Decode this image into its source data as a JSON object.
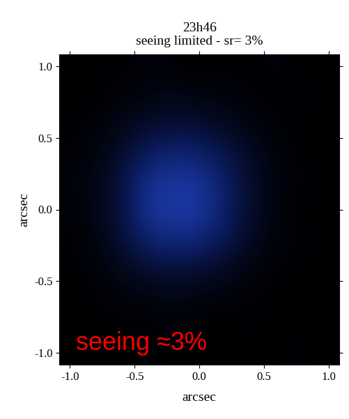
{
  "chart_data": {
    "type": "heatmap",
    "title": "23h46\nseeing limited - sr= 3%",
    "x_label": "arcsec",
    "y_label": "arcsec",
    "xlim": [
      -1.08,
      1.08
    ],
    "ylim": [
      -1.08,
      1.08
    ],
    "xticks": [
      {
        "value": -1.0,
        "label": "-1.0"
      },
      {
        "value": -0.5,
        "label": "-0.5"
      },
      {
        "value": 0.0,
        "label": "0.0"
      },
      {
        "value": 0.5,
        "label": "0.5"
      },
      {
        "value": 1.0,
        "label": "1.0"
      }
    ],
    "yticks": [
      {
        "value": -1.0,
        "label": "-1.0"
      },
      {
        "value": -0.5,
        "label": "-0.5"
      },
      {
        "value": 0.0,
        "label": "0.0"
      },
      {
        "value": 0.5,
        "label": "0.5"
      },
      {
        "value": 1.0,
        "label": "1.0"
      }
    ],
    "cells": [
      [
        0.05,
        0.08,
        0.06,
        0.1,
        0.07,
        0.05,
        0.08,
        0.06,
        0.1,
        0.05,
        0.07
      ],
      [
        0.07,
        0.05,
        0.1,
        0.12,
        0.15,
        0.12,
        0.1,
        0.08,
        0.06,
        0.09,
        0.05
      ],
      [
        0.06,
        0.1,
        0.15,
        0.25,
        0.3,
        0.28,
        0.2,
        0.12,
        0.08,
        0.05,
        0.07
      ],
      [
        0.08,
        0.12,
        0.25,
        0.5,
        0.6,
        0.55,
        0.4,
        0.2,
        0.1,
        0.07,
        0.06
      ],
      [
        0.1,
        0.15,
        0.35,
        0.75,
        0.85,
        0.8,
        0.55,
        0.25,
        0.12,
        0.08,
        0.05
      ],
      [
        0.08,
        0.15,
        0.35,
        0.8,
        0.9,
        0.85,
        0.55,
        0.25,
        0.1,
        0.06,
        0.07
      ],
      [
        0.07,
        0.12,
        0.3,
        0.6,
        0.7,
        0.65,
        0.45,
        0.2,
        0.1,
        0.08,
        0.05
      ],
      [
        0.06,
        0.1,
        0.18,
        0.3,
        0.35,
        0.3,
        0.22,
        0.12,
        0.08,
        0.06,
        0.07
      ],
      [
        0.05,
        0.08,
        0.1,
        0.12,
        0.15,
        0.12,
        0.1,
        0.08,
        0.06,
        0.05,
        0.06
      ],
      [
        0.07,
        0.05,
        0.08,
        0.06,
        0.1,
        0.07,
        0.05,
        0.08,
        0.06,
        0.07,
        0.05
      ],
      [
        0.05,
        0.07,
        0.05,
        0.08,
        0.06,
        0.05,
        0.07,
        0.05,
        0.06,
        0.08,
        0.05
      ]
    ],
    "annotations": [
      {
        "text": "seeing ≈3%",
        "color": "red"
      }
    ]
  }
}
